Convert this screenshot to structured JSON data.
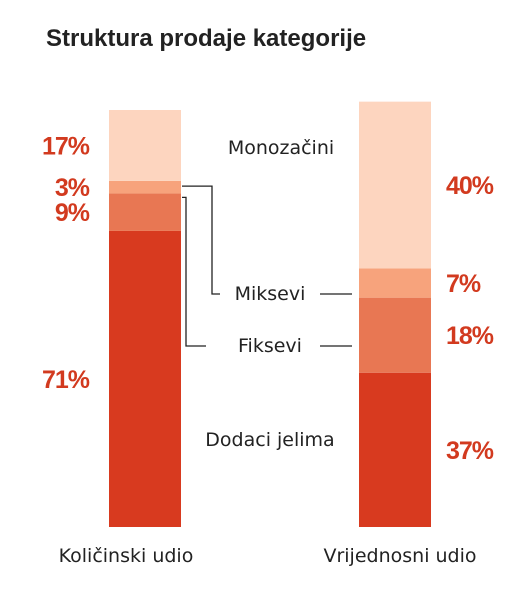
{
  "chart_data": {
    "type": "bar",
    "stacked": true,
    "normalized": true,
    "title": "Struktura prodaje kategorije",
    "categories": [
      "Količinski udio",
      "Vrijednosni udio"
    ],
    "series": [
      {
        "name": "Dodaci jelima",
        "values": [
          71,
          37
        ],
        "value_labels": [
          "71%",
          "37%"
        ],
        "color": "#d83a1f"
      },
      {
        "name": "Fiksevi",
        "values": [
          9,
          18
        ],
        "value_labels": [
          "9%",
          "18%"
        ],
        "color": "#e87753"
      },
      {
        "name": "Miksevi",
        "values": [
          3,
          7
        ],
        "value_labels": [
          "3%",
          "7%"
        ],
        "color": "#f7a37c"
      },
      {
        "name": "Monozačini",
        "values": [
          17,
          40
        ],
        "value_labels": [
          "17%",
          "40%"
        ],
        "color": "#fdd5bf"
      }
    ],
    "ylim": [
      0,
      100
    ],
    "grid": false,
    "label_color": "#d23a1f"
  }
}
